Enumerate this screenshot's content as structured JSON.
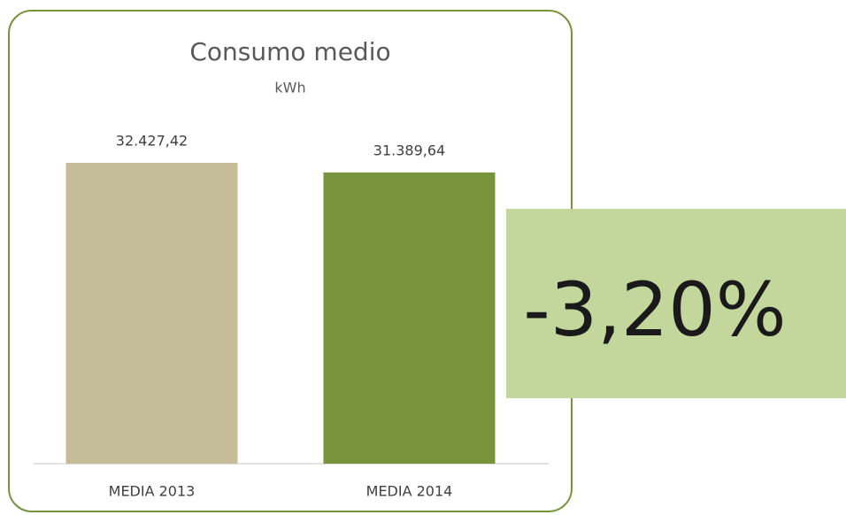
{
  "chart_data": {
    "type": "bar",
    "title": "Consumo medio",
    "subtitle": "kWh",
    "categories": [
      "MEDIA 2013",
      "MEDIA 2014"
    ],
    "values": [
      32427.42,
      31389.64
    ],
    "value_labels": [
      "32.427,42",
      "31.389,64"
    ],
    "colors": [
      "#c4bd97",
      "#77933c"
    ],
    "annotation": "-3,20%"
  }
}
